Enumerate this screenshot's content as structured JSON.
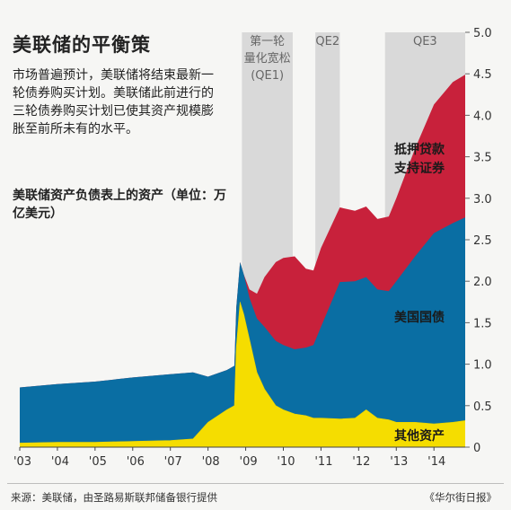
{
  "header": {
    "title": "美联储的平衡策",
    "intro": "市场普遍预计，美联储将结束最新一轮债券购买计划。美联储此前进行的三轮债券购买计划已使其资产规模膨胀至前所未有的水平。",
    "subtitle": "美联储资产负债表上的资产（单位：万亿美元）"
  },
  "footer": {
    "source": "来源：美联储，由圣路易斯联邦储备银行提供",
    "credit": "《华尔街日报》"
  },
  "colors": {
    "background": "#f6f6f4",
    "mbs": "#c8213b",
    "treasuries": "#0a6ea3",
    "other": "#f5dd00",
    "qe_band": "#d9d9d9"
  },
  "chart_data": {
    "type": "area",
    "stacked": true,
    "title": "美联储资产负债表上的资产",
    "ylabel": "单位：万亿美元",
    "ylim": [
      0,
      5.0
    ],
    "y_ticks": [
      "0",
      "0.5",
      "1.0",
      "1.5",
      "2.0",
      "2.5",
      "3.0",
      "3.5",
      "4.0",
      "4.5",
      "5.0"
    ],
    "x_ticks": [
      "'03",
      "'04",
      "'05",
      "'06",
      "'07",
      "'08",
      "'09",
      "'10",
      "'11",
      "'12",
      "'13",
      "'14"
    ],
    "y_axis_side": "right",
    "qe_periods": [
      {
        "label": "第一轮量化宽松(QE1)",
        "start": 2008.9,
        "end": 2010.25
      },
      {
        "label": "QE2",
        "start": 2010.85,
        "end": 2011.5
      },
      {
        "label": "QE3",
        "start": 2012.7,
        "end": 2014.83
      }
    ],
    "x": [
      2003.0,
      2004.0,
      2005.0,
      2006.0,
      2007.0,
      2007.6,
      2008.0,
      2008.5,
      2008.7,
      2008.75,
      2008.85,
      2008.95,
      2009.1,
      2009.3,
      2009.5,
      2009.8,
      2010.0,
      2010.3,
      2010.6,
      2010.8,
      2011.0,
      2011.5,
      2011.9,
      2012.2,
      2012.5,
      2012.8,
      2013.0,
      2013.5,
      2014.0,
      2014.5,
      2014.83
    ],
    "series": [
      {
        "name": "其他资产",
        "values": [
          0.05,
          0.06,
          0.06,
          0.07,
          0.08,
          0.1,
          0.3,
          0.45,
          0.5,
          1.2,
          1.75,
          1.6,
          1.3,
          0.9,
          0.7,
          0.5,
          0.45,
          0.4,
          0.38,
          0.35,
          0.35,
          0.34,
          0.35,
          0.45,
          0.35,
          0.33,
          0.3,
          0.3,
          0.28,
          0.3,
          0.32
        ]
      },
      {
        "name": "美国国债",
        "values": [
          0.67,
          0.7,
          0.73,
          0.77,
          0.8,
          0.8,
          0.55,
          0.48,
          0.48,
          0.48,
          0.48,
          0.48,
          0.5,
          0.65,
          0.75,
          0.78,
          0.78,
          0.78,
          0.82,
          0.88,
          1.1,
          1.65,
          1.65,
          1.6,
          1.55,
          1.55,
          1.7,
          2.0,
          2.3,
          2.4,
          2.45
        ]
      },
      {
        "name": "抵押贷款支持证券",
        "values": [
          0,
          0,
          0,
          0,
          0,
          0,
          0,
          0,
          0,
          0,
          0,
          0,
          0.1,
          0.3,
          0.6,
          0.95,
          1.05,
          1.12,
          0.95,
          0.9,
          0.95,
          0.9,
          0.85,
          0.85,
          0.85,
          0.9,
          1.0,
          1.3,
          1.55,
          1.7,
          1.72
        ]
      }
    ],
    "series_labels": [
      "其他资产",
      "美国国债",
      "抵押贷款支持证券"
    ]
  }
}
